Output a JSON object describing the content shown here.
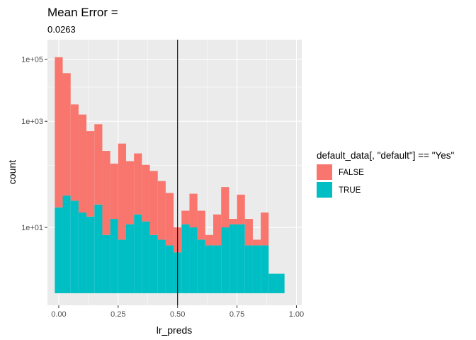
{
  "chart_data": {
    "type": "bar",
    "title": "Mean Error =",
    "subtitle": "0.0263",
    "xlabel": "lr_preds",
    "ylabel": "count",
    "y_scale": "log10",
    "x_ticks": [
      0,
      0.25,
      0.5,
      0.75,
      1
    ],
    "x_tick_labels": [
      "0.00",
      "0.25",
      "0.50",
      "0.75",
      "1.00"
    ],
    "y_ticks": [
      10,
      1000,
      100000
    ],
    "y_tick_labels": [
      "1e+01",
      "1e+03",
      "1e+05"
    ],
    "xlim": [
      -0.0475,
      1.0225
    ],
    "ylim_log10": [
      -0.1,
      1.3
    ],
    "vline_x": 0.5,
    "bin_width": 0.03333,
    "bin_centers": [
      0.0,
      0.0333,
      0.0667,
      0.1,
      0.1333,
      0.1667,
      0.2,
      0.2333,
      0.2667,
      0.3,
      0.3333,
      0.3667,
      0.4,
      0.4333,
      0.4667,
      0.5,
      0.5333,
      0.5667,
      0.6,
      0.6333,
      0.6667,
      0.7,
      0.7333,
      0.7667,
      0.8,
      0.8333,
      0.8667,
      0.9,
      0.9333,
      0.9667
    ],
    "legend": {
      "title": "default_data[, \"default\"] == \"Yes\"",
      "position": "right"
    },
    "grid": true,
    "series": [
      {
        "name": "TRUE",
        "color": "#00BFC4",
        "values": [
          19,
          29,
          24,
          16,
          14,
          21,
          8,
          13,
          7,
          11,
          15,
          12,
          8,
          7,
          6,
          5,
          11,
          10,
          7,
          6,
          6,
          10,
          11,
          11,
          6,
          6,
          6,
          3,
          3,
          2
        ]
      },
      {
        "name": "FALSE",
        "color": "#F8766D",
        "values": [
          120000,
          30000,
          2900,
          1500,
          550,
          820,
          190,
          95,
          280,
          110,
          160,
          90,
          70,
          44,
          26,
          5,
          6,
          21,
          10,
          2,
          9,
          30,
          2,
          19,
          7,
          1,
          10,
          0,
          0,
          0
        ]
      }
    ]
  }
}
